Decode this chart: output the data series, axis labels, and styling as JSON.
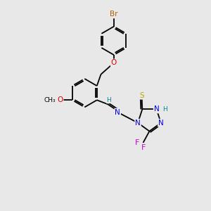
{
  "bg_color": "#e8e8e8",
  "bond_color": "#000000",
  "atom_colors": {
    "Br": "#b06000",
    "O": "#dd0000",
    "N": "#0000dd",
    "S": "#bbaa00",
    "F": "#cc00cc",
    "H": "#008899",
    "C": "#000000"
  },
  "figsize": [
    3.0,
    3.0
  ],
  "dpi": 100,
  "lw": 1.3,
  "r_hex": 0.62,
  "off": 0.07
}
